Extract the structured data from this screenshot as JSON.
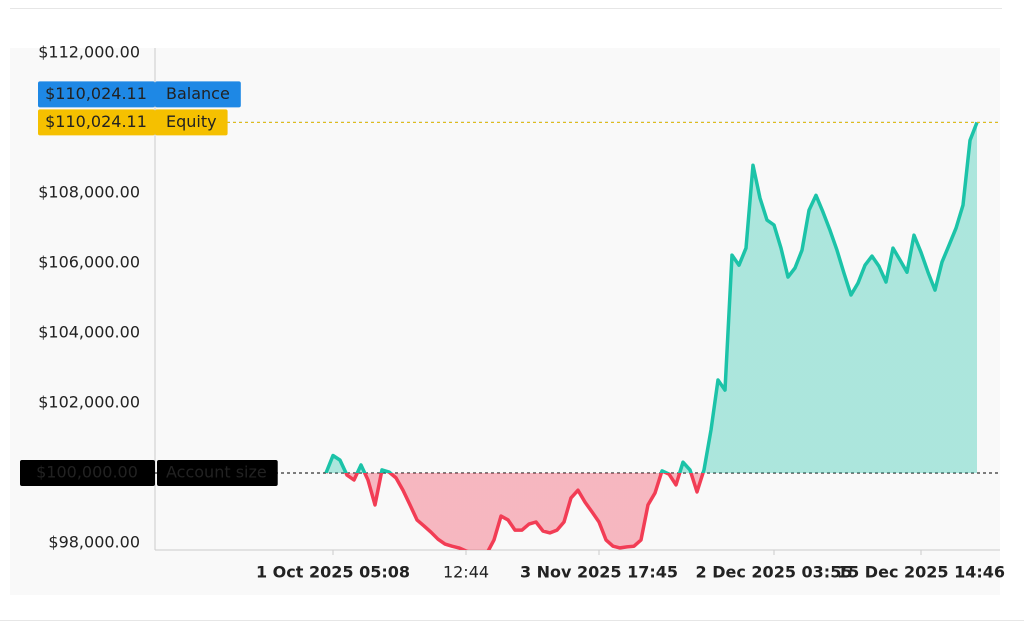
{
  "chart_data": {
    "type": "line",
    "categories": [
      null,
      "1 Oct 2025 05:08",
      null,
      null,
      null,
      null,
      null,
      null,
      null,
      null,
      null,
      null,
      null,
      null,
      null,
      null,
      null,
      null,
      null,
      null,
      "12:44",
      null,
      null,
      null,
      null,
      null,
      null,
      null,
      null,
      null,
      null,
      null,
      null,
      null,
      null,
      null,
      null,
      null,
      null,
      "3 Nov 2025 17:45",
      null,
      null,
      null,
      null,
      null,
      null,
      null,
      null,
      null,
      null,
      null,
      null,
      null,
      null,
      null,
      null,
      null,
      null,
      null,
      null,
      null,
      null,
      null,
      null,
      "2 Dec 2025 03:55",
      null,
      null,
      null,
      null,
      null,
      null,
      null,
      null,
      null,
      null,
      null,
      null,
      null,
      null,
      null,
      null,
      null,
      null,
      null,
      null,
      "15 Dec 2025 14:46",
      null,
      null,
      null,
      null,
      null,
      null,
      null,
      null
    ],
    "series": [
      {
        "color": "#1cc3a8",
        "negative_color": "#f23d55",
        "values": [
          100000,
          100500,
          100370,
          99940,
          99800,
          100230,
          99800,
          99090,
          100090,
          100030,
          99860,
          99510,
          99090,
          98660,
          98490,
          98310,
          98110,
          97970,
          97910,
          97860,
          97770,
          97710,
          97710,
          97710,
          98090,
          98770,
          98660,
          98370,
          98370,
          98540,
          98600,
          98340,
          98290,
          98370,
          98600,
          99290,
          99510,
          99170,
          98890,
          98600,
          98090,
          97910,
          97860,
          97890,
          97910,
          98090,
          99090,
          99430,
          100060,
          99970,
          99660,
          100310,
          100090,
          99460,
          100090,
          101230,
          102660,
          102370,
          106230,
          105940,
          106430,
          108800,
          107860,
          107230,
          107090,
          106430,
          105600,
          105860,
          106370,
          107510,
          107940,
          107460,
          106940,
          106370,
          105710,
          105090,
          105430,
          105940,
          106200,
          105910,
          105460,
          106430,
          106090,
          105740,
          106800,
          106310,
          105740,
          105230,
          106030,
          106510,
          107000,
          107660,
          109510,
          110024.11
        ]
      }
    ],
    "ylim": [
      97800,
      112150
    ],
    "yticks": [
      {
        "value": 98000,
        "label": "$98,000.00"
      },
      {
        "value": 102000,
        "label": "$102,000.00"
      },
      {
        "value": 104000,
        "label": "$104,000.00"
      },
      {
        "value": 106000,
        "label": "$106,000.00"
      },
      {
        "value": 108000,
        "label": "$108,000.00"
      },
      {
        "value": 112000,
        "label": "$112,000.00"
      }
    ],
    "baseline": {
      "value": 100000,
      "label": "$100,000.00",
      "name": "Account size"
    },
    "markers": [
      {
        "name": "Balance",
        "value": 110024.11,
        "label": "$110,024.11",
        "color": "#1e88e5"
      },
      {
        "name": "Equity",
        "value": 110024.11,
        "label": "$110,024.11",
        "color": "#f5c000"
      }
    ]
  }
}
